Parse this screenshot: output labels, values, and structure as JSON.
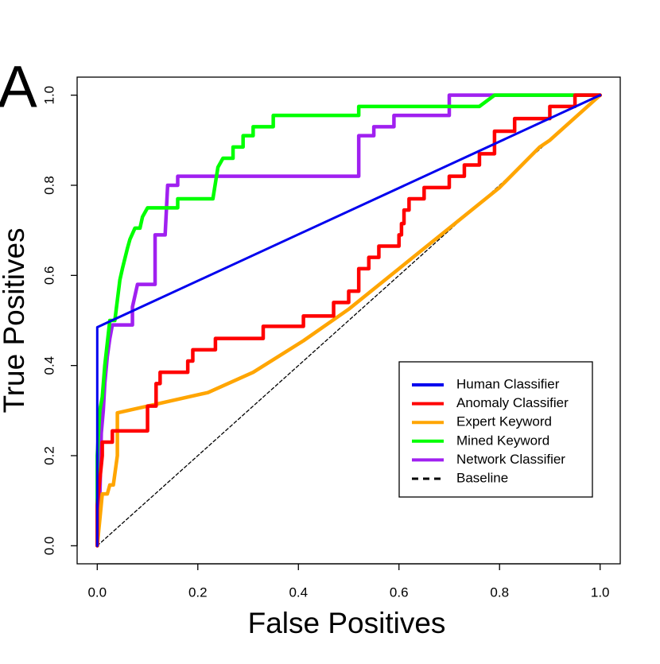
{
  "chart_data": {
    "type": "line",
    "panel_label": "A",
    "x_label": "False Positives",
    "y_label": "True Positives",
    "xlim": [
      -0.04,
      1.04
    ],
    "ylim": [
      -0.04,
      1.04
    ],
    "xticks": [
      {
        "value": 0,
        "label": "0.0"
      },
      0.2,
      0.4,
      0.6,
      0.8,
      {
        "value": 1,
        "label": "1.0"
      }
    ],
    "yticks": [
      {
        "value": 0,
        "label": "0.0"
      },
      0.2,
      0.4,
      0.6,
      0.8,
      {
        "value": 1,
        "label": "1.0"
      }
    ],
    "legend_position": "bottom-right",
    "series": [
      {
        "name": "Human Classifier",
        "color": "#0000ee",
        "width": 3,
        "x": [
          0,
          0,
          1
        ],
        "values": [
          0,
          0.485,
          1
        ]
      },
      {
        "name": "Anomaly Classifier",
        "color": "#ff0000",
        "width": 4.5,
        "x": [
          0,
          0,
          0.01,
          0.01,
          0.03,
          0.03,
          0.1,
          0.1,
          0.117,
          0.117,
          0.125,
          0.125,
          0.18,
          0.18,
          0.19,
          0.19,
          0.235,
          0.235,
          0.33,
          0.33,
          0.41,
          0.41,
          0.47,
          0.47,
          0.5,
          0.5,
          0.52,
          0.52,
          0.54,
          0.54,
          0.56,
          0.56,
          0.6,
          0.6,
          0.605,
          0.605,
          0.61,
          0.61,
          0.62,
          0.62,
          0.65,
          0.65,
          0.7,
          0.7,
          0.73,
          0.73,
          0.76,
          0.76,
          0.79,
          0.79,
          0.83,
          0.83,
          0.9,
          0.9,
          0.95,
          0.95,
          1
        ],
        "values": [
          0,
          0.09,
          0.2,
          0.23,
          0.23,
          0.255,
          0.255,
          0.31,
          0.31,
          0.36,
          0.36,
          0.385,
          0.385,
          0.41,
          0.41,
          0.435,
          0.435,
          0.46,
          0.46,
          0.487,
          0.487,
          0.51,
          0.51,
          0.54,
          0.54,
          0.565,
          0.565,
          0.615,
          0.615,
          0.64,
          0.64,
          0.665,
          0.665,
          0.69,
          0.69,
          0.715,
          0.715,
          0.745,
          0.745,
          0.77,
          0.77,
          0.795,
          0.795,
          0.82,
          0.82,
          0.845,
          0.845,
          0.87,
          0.87,
          0.92,
          0.92,
          0.948,
          0.948,
          0.975,
          0.975,
          1,
          1
        ]
      },
      {
        "name": "Expert Keyword",
        "color": "#ffa500",
        "width": 4.5,
        "x": [
          0,
          0.01,
          0.02,
          0.025,
          0.032,
          0.04,
          0.04,
          0.1,
          0.22,
          0.31,
          0.41,
          0.5,
          0.6,
          0.7,
          0.8,
          0.88,
          0.9,
          1
        ],
        "values": [
          0,
          0.115,
          0.115,
          0.135,
          0.135,
          0.2,
          0.295,
          0.31,
          0.34,
          0.385,
          0.455,
          0.525,
          0.615,
          0.705,
          0.795,
          0.885,
          0.9,
          1
        ]
      },
      {
        "name": "Mined Keyword",
        "color": "#00ff00",
        "width": 4.5,
        "x": [
          0,
          0,
          0.005,
          0.01,
          0.015,
          0.02,
          0.025,
          0.035,
          0.04,
          0.045,
          0.05,
          0.06,
          0.065,
          0.075,
          0.085,
          0.09,
          0.1,
          0.16,
          0.16,
          0.23,
          0.24,
          0.25,
          0.27,
          0.27,
          0.29,
          0.29,
          0.31,
          0.31,
          0.35,
          0.35,
          0.52,
          0.52,
          0.76,
          0.79,
          1
        ],
        "values": [
          0,
          0.2,
          0.3,
          0.33,
          0.4,
          0.45,
          0.5,
          0.5,
          0.545,
          0.59,
          0.615,
          0.66,
          0.68,
          0.705,
          0.705,
          0.73,
          0.75,
          0.75,
          0.77,
          0.77,
          0.84,
          0.86,
          0.86,
          0.885,
          0.885,
          0.91,
          0.91,
          0.93,
          0.93,
          0.955,
          0.955,
          0.975,
          0.975,
          1,
          1
        ]
      },
      {
        "name": "Network Classifier",
        "color": "#a020f0",
        "width": 4.5,
        "x": [
          0,
          0.005,
          0.008,
          0.012,
          0.015,
          0.02,
          0.025,
          0.03,
          0.07,
          0.07,
          0.08,
          0.115,
          0.115,
          0.135,
          0.14,
          0.16,
          0.16,
          0.52,
          0.52,
          0.55,
          0.55,
          0.59,
          0.59,
          0.7,
          0.7,
          1
        ],
        "values": [
          0,
          0.1,
          0.25,
          0.3,
          0.36,
          0.42,
          0.46,
          0.49,
          0.49,
          0.53,
          0.58,
          0.58,
          0.69,
          0.69,
          0.8,
          0.8,
          0.82,
          0.82,
          0.91,
          0.91,
          0.93,
          0.93,
          0.955,
          0.955,
          1,
          1
        ]
      },
      {
        "name": "Baseline",
        "color": "#000000",
        "width": 1.3,
        "dashed": true,
        "x": [
          0,
          1
        ],
        "values": [
          0,
          1
        ]
      }
    ]
  }
}
